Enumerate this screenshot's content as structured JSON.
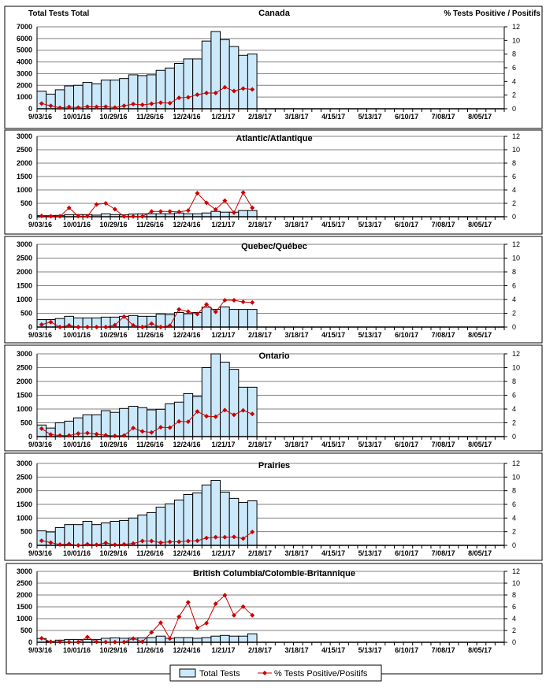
{
  "colors": {
    "bar_fill": "#cce9fb",
    "bar_stroke": "#000000",
    "line": "#cc0000",
    "grid": "#808080"
  },
  "legend": {
    "bars": "Total Tests",
    "line": "% Tests Positive/Positifs"
  },
  "chart_data": [
    {
      "type": "bar+line",
      "title": "Canada",
      "ylabel": "Total Tests Total",
      "y2label": "% Tests Positive / Positifs",
      "ylim": [
        0,
        7000
      ],
      "ystep": 1000,
      "y2lim": [
        0,
        12
      ],
      "y2step": 2,
      "x_ticks": [
        "9/03/16",
        "10/01/16",
        "10/29/16",
        "11/26/16",
        "12/24/16",
        "1/21/17",
        "2/18/17",
        "3/18/17",
        "4/15/17",
        "5/13/17",
        "6/10/17",
        "7/08/17",
        "8/05/17"
      ],
      "total_tests": [
        1500,
        1250,
        1620,
        1950,
        2000,
        2250,
        2130,
        2450,
        2450,
        2580,
        2900,
        2830,
        2900,
        3280,
        3480,
        3870,
        4250,
        4250,
        5780,
        6600,
        5900,
        5320,
        4560,
        4680
      ],
      "pct_positive": [
        0.77,
        0.43,
        0.14,
        0.26,
        0.17,
        0.31,
        0.27,
        0.31,
        0.17,
        0.43,
        0.69,
        0.57,
        0.74,
        0.89,
        0.82,
        1.6,
        1.68,
        2.06,
        2.31,
        2.31,
        3.14,
        2.6,
        2.95,
        2.83
      ]
    },
    {
      "type": "bar+line",
      "title": "Atlantic/Atlantique",
      "ylim": [
        0,
        3000
      ],
      "ystep": 500,
      "y2lim": [
        0,
        12
      ],
      "y2step": 2,
      "x_ticks": [
        "9/03/16",
        "10/01/16",
        "10/29/16",
        "11/26/16",
        "12/24/16",
        "1/21/17",
        "2/18/17",
        "3/18/17",
        "4/15/17",
        "5/13/17",
        "6/10/17",
        "7/08/17",
        "8/05/17"
      ],
      "total_tests": [
        40,
        40,
        50,
        80,
        80,
        80,
        60,
        110,
        80,
        70,
        100,
        110,
        110,
        110,
        110,
        140,
        110,
        110,
        140,
        200,
        170,
        170,
        230,
        230
      ],
      "pct_positive": [
        0.12,
        0.08,
        0.08,
        1.32,
        0.08,
        0.08,
        1.84,
        2.0,
        1.12,
        0.04,
        0.04,
        0.04,
        0.8,
        0.8,
        0.8,
        0.72,
        0.92,
        3.52,
        2.08,
        1.08,
        2.4,
        0.6,
        3.6,
        1.32
      ]
    },
    {
      "type": "bar+line",
      "title": "Quebec/Québec",
      "ylim": [
        0,
        3000
      ],
      "ystep": 500,
      "y2lim": [
        0,
        12
      ],
      "y2step": 2,
      "x_ticks": [
        "9/03/16",
        "10/01/16",
        "10/29/16",
        "11/26/16",
        "12/24/16",
        "1/21/17",
        "2/18/17",
        "3/18/17",
        "4/15/17",
        "5/13/17",
        "6/10/17",
        "7/08/17",
        "8/05/17"
      ],
      "total_tests": [
        270,
        270,
        310,
        390,
        330,
        330,
        330,
        360,
        360,
        390,
        420,
        390,
        390,
        470,
        450,
        530,
        480,
        530,
        720,
        640,
        730,
        640,
        640,
        640
      ],
      "pct_positive": [
        0.36,
        0.72,
        0,
        0.24,
        0,
        0,
        0,
        0,
        0.28,
        1.52,
        0.24,
        0,
        0.48,
        0,
        0.2,
        2.56,
        2.24,
        1.88,
        3.28,
        2.2,
        3.88,
        3.88,
        3.64,
        3.56
      ]
    },
    {
      "type": "bar+line",
      "title": "Ontario",
      "ylim": [
        0,
        3000
      ],
      "ystep": 500,
      "y2lim": [
        0,
        12
      ],
      "y2step": 2,
      "x_ticks": [
        "9/03/16",
        "10/01/16",
        "10/29/16",
        "11/26/16",
        "12/24/16",
        "1/21/17",
        "2/18/17",
        "3/18/17",
        "4/15/17",
        "5/13/17",
        "6/10/17",
        "7/08/17",
        "8/05/17"
      ],
      "total_tests": [
        420,
        310,
        500,
        560,
        680,
        790,
        790,
        940,
        880,
        1020,
        1100,
        1050,
        970,
        990,
        1190,
        1250,
        1560,
        1450,
        2500,
        3000,
        2700,
        2440,
        1790,
        1790
      ],
      "pct_positive": [
        1.16,
        0.3,
        0.16,
        0.16,
        0.44,
        0.52,
        0.36,
        0.2,
        0.1,
        0.16,
        1.24,
        0.76,
        0.6,
        1.36,
        1.3,
        2.2,
        2.16,
        3.64,
        2.96,
        2.88,
        3.84,
        3.16,
        3.8,
        3.28
      ]
    },
    {
      "type": "bar+line",
      "title": "Prairies",
      "ylim": [
        0,
        3000
      ],
      "ystep": 500,
      "y2lim": [
        0,
        12
      ],
      "y2step": 2,
      "x_ticks": [
        "9/03/16",
        "10/01/16",
        "10/29/16",
        "11/26/16",
        "12/24/16",
        "1/21/17",
        "2/18/17",
        "3/18/17",
        "4/15/17",
        "5/13/17",
        "6/10/17",
        "7/08/17",
        "8/05/17"
      ],
      "total_tests": [
        530,
        490,
        650,
        760,
        760,
        880,
        760,
        820,
        880,
        910,
        1000,
        1110,
        1200,
        1400,
        1520,
        1660,
        1860,
        1920,
        2210,
        2380,
        1950,
        1720,
        1570,
        1630
      ],
      "pct_positive": [
        0.68,
        0.4,
        0.12,
        0.2,
        0,
        0.16,
        0.08,
        0.36,
        0.08,
        0.16,
        0.28,
        0.64,
        0.64,
        0.4,
        0.52,
        0.52,
        0.64,
        0.68,
        1.08,
        1.2,
        1.2,
        1.24,
        1.0,
        1.96
      ]
    },
    {
      "type": "bar+line",
      "title": "British Columbia/Colombie-Britannique",
      "ylim": [
        0,
        3000
      ],
      "ystep": 500,
      "y2lim": [
        0,
        12
      ],
      "y2step": 2,
      "x_ticks": [
        "9/03/16",
        "10/01/16",
        "10/29/16",
        "11/26/16",
        "12/24/16",
        "1/21/17",
        "2/18/17",
        "3/18/17",
        "4/15/17",
        "5/13/17",
        "6/10/17",
        "7/08/17",
        "8/05/17"
      ],
      "total_tests": [
        160,
        40,
        90,
        120,
        120,
        120,
        120,
        170,
        190,
        170,
        180,
        190,
        200,
        260,
        170,
        200,
        200,
        170,
        200,
        260,
        290,
        260,
        260,
        360
      ],
      "pct_positive": [
        0.68,
        0.08,
        0.08,
        0.04,
        0.04,
        0.88,
        0.08,
        0.04,
        0.04,
        0.04,
        0.64,
        0.08,
        1.68,
        3.32,
        0.64,
        4.32,
        6.76,
        2.44,
        3.24,
        6.52,
        7.96,
        4.56,
        6.04,
        4.56
      ]
    }
  ]
}
